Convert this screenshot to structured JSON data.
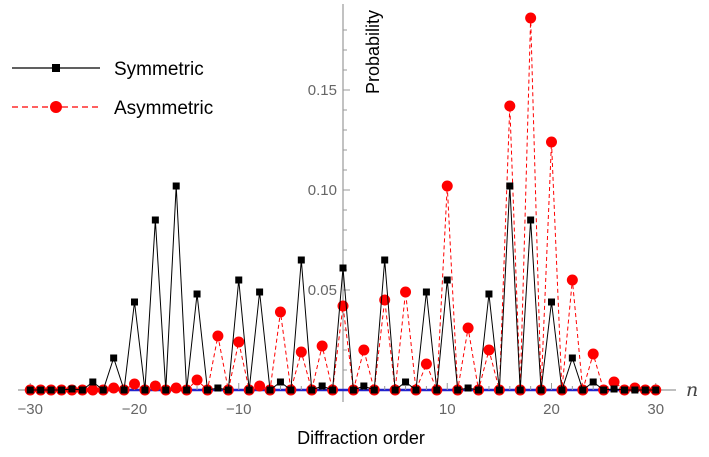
{
  "chart_data": {
    "type": "line",
    "xlabel": "Diffraction order",
    "ylabel": "Probability",
    "x_axis_variable": "n",
    "xlim": [
      -30.6,
      30.6
    ],
    "ylim": [
      0,
      0.19
    ],
    "x_ticks": [
      -30,
      -20,
      -10,
      10,
      20,
      30
    ],
    "x_tick_labels": [
      "−30",
      "−20",
      "−10",
      "10",
      "20",
      "30"
    ],
    "y_ticks": [
      0.05,
      0.1,
      0.15
    ],
    "y_tick_labels": [
      "0.05",
      "0.10",
      "0.15"
    ],
    "grid": false,
    "legend_position": "top-left",
    "x": [
      -30,
      -29,
      -28,
      -27,
      -26,
      -25,
      -24,
      -23,
      -22,
      -21,
      -20,
      -19,
      -18,
      -17,
      -16,
      -15,
      -14,
      -13,
      -12,
      -11,
      -10,
      -9,
      -8,
      -7,
      -6,
      -5,
      -4,
      -3,
      -2,
      -1,
      0,
      1,
      2,
      3,
      4,
      5,
      6,
      7,
      8,
      9,
      10,
      11,
      12,
      13,
      14,
      15,
      16,
      17,
      18,
      19,
      20,
      21,
      22,
      23,
      24,
      25,
      26,
      27,
      28,
      29,
      30
    ],
    "series": [
      {
        "name": "Symmetric",
        "color": "#000000",
        "marker": "square",
        "line": "solid",
        "values": [
          0,
          0,
          0,
          0,
          0.0005,
          0,
          0.004,
          0,
          0.016,
          0,
          0.044,
          0,
          0.085,
          0,
          0.102,
          0,
          0.048,
          0,
          0.001,
          0,
          0.055,
          0,
          0.049,
          0,
          0.004,
          0,
          0.065,
          0,
          0.002,
          0,
          0.061,
          0,
          0.002,
          0,
          0.065,
          0,
          0.004,
          0,
          0.049,
          0,
          0.055,
          0,
          0.001,
          0,
          0.048,
          0,
          0.102,
          0,
          0.085,
          0,
          0.044,
          0,
          0.016,
          0,
          0.004,
          0,
          0.0005,
          0,
          0,
          0,
          0
        ]
      },
      {
        "name": "Asymmetric",
        "color": "#ff0000",
        "marker": "circle",
        "line": "dashed",
        "values": [
          0,
          0,
          0,
          0,
          0,
          0,
          0,
          0,
          0.001,
          0,
          0.003,
          0,
          0.002,
          0,
          0.001,
          0,
          0.005,
          0,
          0.027,
          0,
          0.024,
          0,
          0.002,
          0,
          0.039,
          0,
          0.019,
          0,
          0.022,
          0,
          0.042,
          0,
          0.02,
          0,
          0.045,
          0,
          0.049,
          0,
          0.013,
          0,
          0.102,
          0,
          0.031,
          0,
          0.02,
          0,
          0.142,
          0,
          0.186,
          0,
          0.124,
          0,
          0.055,
          0,
          0.018,
          0,
          0.004,
          0,
          0.001,
          0,
          0
        ]
      }
    ]
  }
}
